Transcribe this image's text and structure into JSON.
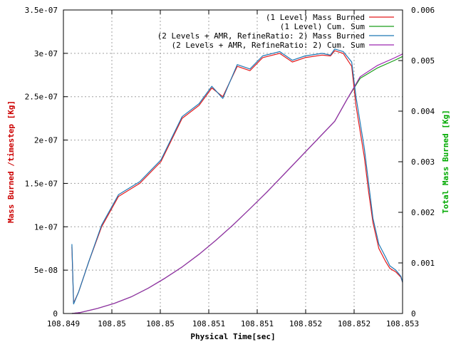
{
  "chart_data": {
    "type": "line",
    "xlabel": "Physical Time[sec]",
    "ylabel": "Mass Burned /timestep [Kg]",
    "y2label": "Total Mass Burned [Kg]",
    "xlim": [
      108.849,
      108.853
    ],
    "ylim": [
      0,
      3.5e-07
    ],
    "y2lim": [
      0,
      0.006
    ],
    "grid": true,
    "legend_position": "top-right",
    "x_tick_labels": [
      "108.849",
      "108.85",
      "108.85",
      "108.851",
      "108.851",
      "108.852",
      "108.852",
      "108.853"
    ],
    "y_tick_labels": [
      "0",
      "5e-08",
      "1e-07",
      "1.5e-07",
      "2e-07",
      "2.5e-07",
      "3e-07",
      "3.5e-07"
    ],
    "y2_tick_labels": [
      "0",
      "0.001",
      "0.002",
      "0.003",
      "0.004",
      "0.005",
      "0.006"
    ],
    "series": [
      {
        "name": "(1 Level) Mass Burned",
        "axis": "y",
        "color": "#e41a1c",
        "x": [
          108.8491,
          108.84912,
          108.84918,
          108.8493,
          108.84945,
          108.84965,
          108.8499,
          108.85015,
          108.8504,
          108.8506,
          108.85075,
          108.85088,
          108.85105,
          108.8512,
          108.85135,
          108.85155,
          108.8517,
          108.85185,
          108.85205,
          108.85215,
          108.8522,
          108.8523,
          108.8524,
          108.85245,
          108.85255,
          108.8526,
          108.85265,
          108.85272,
          108.8528,
          108.85285,
          108.85292,
          108.85298,
          108.853
        ],
        "y": [
          7.7e-08,
          1.2e-08,
          2.5e-08,
          6e-08,
          1e-07,
          1.35e-07,
          1.5e-07,
          1.75e-07,
          2.25e-07,
          2.4e-07,
          2.6e-07,
          2.5e-07,
          2.85e-07,
          2.8e-07,
          2.95e-07,
          3e-07,
          2.9e-07,
          2.95e-07,
          2.98e-07,
          2.97e-07,
          3.03e-07,
          3e-07,
          2.85e-07,
          2.4e-07,
          1.8e-07,
          1.4e-07,
          1.05e-07,
          7.5e-08,
          6e-08,
          5.2e-08,
          4.8e-08,
          4.2e-08,
          3.6e-08
        ]
      },
      {
        "name": "(1 Level) Cum. Sum",
        "axis": "y2",
        "color": "#1a9e1a",
        "x": [
          108.8491,
          108.8492,
          108.8494,
          108.8496,
          108.8498,
          108.85,
          108.8502,
          108.8504,
          108.8506,
          108.8508,
          108.851,
          108.8512,
          108.8514,
          108.8516,
          108.8518,
          108.852,
          108.8522,
          108.85235,
          108.8525,
          108.8527,
          108.8529,
          108.853
        ],
        "y": [
          0,
          2e-05,
          0.0001,
          0.0002,
          0.00033,
          0.0005,
          0.0007,
          0.00092,
          0.00117,
          0.00145,
          0.00175,
          0.00207,
          0.0024,
          0.00275,
          0.0031,
          0.00345,
          0.0038,
          0.00425,
          0.00465,
          0.00485,
          0.005,
          0.00508
        ]
      },
      {
        "name": "(2 Levels + AMR, RefineRatio: 2)  Mass Burned",
        "axis": "y",
        "color": "#1f77b4",
        "x": [
          108.8491,
          108.84912,
          108.84918,
          108.8493,
          108.84945,
          108.84965,
          108.8499,
          108.85015,
          108.8504,
          108.8506,
          108.85075,
          108.85088,
          108.85105,
          108.8512,
          108.85135,
          108.85155,
          108.8517,
          108.85185,
          108.85205,
          108.85215,
          108.8522,
          108.8523,
          108.8524,
          108.85245,
          108.85255,
          108.8526,
          108.85265,
          108.85272,
          108.8528,
          108.85285,
          108.85292,
          108.85298,
          108.853
        ],
        "y": [
          8e-08,
          1.1e-08,
          2.5e-08,
          6e-08,
          1.02e-07,
          1.37e-07,
          1.52e-07,
          1.77e-07,
          2.27e-07,
          2.42e-07,
          2.62e-07,
          2.48e-07,
          2.87e-07,
          2.82e-07,
          2.97e-07,
          3.02e-07,
          2.92e-07,
          2.97e-07,
          3e-07,
          2.98e-07,
          3.05e-07,
          3.02e-07,
          2.9e-07,
          2.5e-07,
          1.9e-07,
          1.5e-07,
          1.1e-07,
          8e-08,
          6.5e-08,
          5.5e-08,
          5e-08,
          4.3e-08,
          3.6e-08
        ]
      },
      {
        "name": "(2 Levels + AMR, RefineRatio: 2)  Cum. Sum",
        "axis": "y2",
        "color": "#9c27b0",
        "x": [
          108.8491,
          108.8492,
          108.8494,
          108.8496,
          108.8498,
          108.85,
          108.8502,
          108.8504,
          108.8506,
          108.8508,
          108.851,
          108.8512,
          108.8514,
          108.8516,
          108.8518,
          108.852,
          108.8522,
          108.85235,
          108.8525,
          108.8527,
          108.8529,
          108.853
        ],
        "y": [
          0,
          2e-05,
          0.0001,
          0.0002,
          0.00033,
          0.0005,
          0.0007,
          0.00092,
          0.00117,
          0.00145,
          0.00175,
          0.00207,
          0.0024,
          0.00275,
          0.0031,
          0.00345,
          0.0038,
          0.00425,
          0.00468,
          0.0049,
          0.00505,
          0.00513
        ]
      }
    ]
  }
}
